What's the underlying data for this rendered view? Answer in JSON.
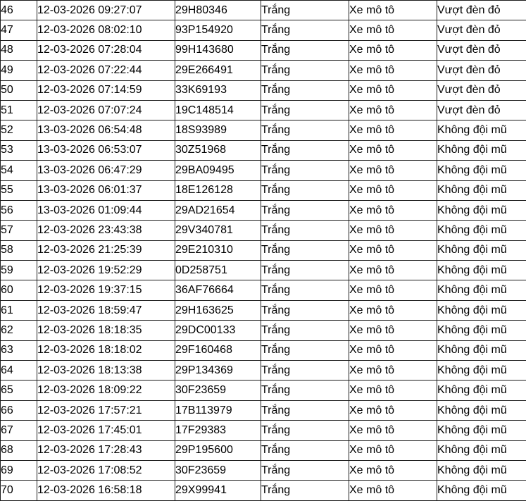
{
  "colors": {
    "background": "#ffffff",
    "border": "#1d1d1d",
    "text": "#000000"
  },
  "table": {
    "rows": [
      {
        "no": "46",
        "datetime": "12-03-2026 09:27:07",
        "plate": "29H80346",
        "color": "Trắng",
        "vehicle": "Xe mô tô",
        "violation": "Vượt đèn đỏ"
      },
      {
        "no": "47",
        "datetime": "12-03-2026 08:02:10",
        "plate": "93P154920",
        "color": "Trắng",
        "vehicle": "Xe mô tô",
        "violation": "Vượt đèn đỏ"
      },
      {
        "no": "48",
        "datetime": "12-03-2026 07:28:04",
        "plate": "99H143680",
        "color": "Trắng",
        "vehicle": "Xe mô tô",
        "violation": "Vượt đèn đỏ"
      },
      {
        "no": "49",
        "datetime": "12-03-2026 07:22:44",
        "plate": "29E266491",
        "color": "Trắng",
        "vehicle": "Xe mô tô",
        "violation": "Vượt đèn đỏ"
      },
      {
        "no": "50",
        "datetime": "12-03-2026 07:14:59",
        "plate": "33K69193",
        "color": "Trắng",
        "vehicle": "Xe mô tô",
        "violation": "Vượt đèn đỏ"
      },
      {
        "no": "51",
        "datetime": "12-03-2026 07:07:24",
        "plate": "19C148514",
        "color": "Trắng",
        "vehicle": "Xe mô tô",
        "violation": "Vượt đèn đỏ"
      },
      {
        "no": "52",
        "datetime": "13-03-2026 06:54:48",
        "plate": "18S93989",
        "color": "Trắng",
        "vehicle": "Xe mô tô",
        "violation": "Không đội mũ"
      },
      {
        "no": "53",
        "datetime": "13-03-2026 06:53:07",
        "plate": "30Z51968",
        "color": "Trắng",
        "vehicle": "Xe mô tô",
        "violation": "Không đội mũ"
      },
      {
        "no": "54",
        "datetime": "13-03-2026 06:47:29",
        "plate": "29BA09495",
        "color": "Trắng",
        "vehicle": "Xe mô tô",
        "violation": "Không đội mũ"
      },
      {
        "no": "55",
        "datetime": "13-03-2026 06:01:37",
        "plate": "18E126128",
        "color": "Trắng",
        "vehicle": "Xe mô tô",
        "violation": "Không đội mũ"
      },
      {
        "no": "56",
        "datetime": "13-03-2026 01:09:44",
        "plate": "29AD21654",
        "color": "Trắng",
        "vehicle": "Xe mô tô",
        "violation": "Không đội mũ"
      },
      {
        "no": "57",
        "datetime": "12-03-2026 23:43:38",
        "plate": "29V340781",
        "color": "Trắng",
        "vehicle": "Xe mô tô",
        "violation": "Không đội mũ"
      },
      {
        "no": "58",
        "datetime": "12-03-2026 21:25:39",
        "plate": "29E210310",
        "color": "Trắng",
        "vehicle": "Xe mô tô",
        "violation": "Không đội mũ"
      },
      {
        "no": "59",
        "datetime": "12-03-2026 19:52:29",
        "plate": "0D258751",
        "color": "Trắng",
        "vehicle": "Xe mô tô",
        "violation": "Không đội mũ"
      },
      {
        "no": "60",
        "datetime": "12-03-2026 19:37:15",
        "plate": "36AF76664",
        "color": "Trắng",
        "vehicle": "Xe mô tô",
        "violation": "Không đội mũ"
      },
      {
        "no": "61",
        "datetime": "12-03-2026 18:59:47",
        "plate": "29H163625",
        "color": "Trắng",
        "vehicle": "Xe mô tô",
        "violation": "Không đội mũ"
      },
      {
        "no": "62",
        "datetime": "12-03-2026 18:18:35",
        "plate": "29DC00133",
        "color": "Trắng",
        "vehicle": "Xe mô tô",
        "violation": "Không đội mũ"
      },
      {
        "no": "63",
        "datetime": "12-03-2026 18:18:02",
        "plate": "29F160468",
        "color": "Trắng",
        "vehicle": "Xe mô tô",
        "violation": "Không đội mũ"
      },
      {
        "no": "64",
        "datetime": "12-03-2026 18:13:38",
        "plate": "29P134369",
        "color": "Trắng",
        "vehicle": "Xe mô tô",
        "violation": "Không đội mũ"
      },
      {
        "no": "65",
        "datetime": "12-03-2026 18:09:22",
        "plate": "30F23659",
        "color": "Trắng",
        "vehicle": "Xe mô tô",
        "violation": "Không đội mũ"
      },
      {
        "no": "66",
        "datetime": "12-03-2026 17:57:21",
        "plate": "17B113979",
        "color": "Trắng",
        "vehicle": "Xe mô tô",
        "violation": "Không đội mũ"
      },
      {
        "no": "67",
        "datetime": "12-03-2026 17:45:01",
        "plate": "17F29383",
        "color": "Trắng",
        "vehicle": "Xe mô tô",
        "violation": "Không đội mũ"
      },
      {
        "no": "68",
        "datetime": "12-03-2026 17:28:43",
        "plate": "29P195600",
        "color": "Trắng",
        "vehicle": "Xe mô tô",
        "violation": "Không đội mũ"
      },
      {
        "no": "69",
        "datetime": "12-03-2026 17:08:52",
        "plate": "30F23659",
        "color": "Trắng",
        "vehicle": "Xe mô tô",
        "violation": "Không đội mũ"
      },
      {
        "no": "70",
        "datetime": "12-03-2026 16:58:18",
        "plate": "29X99941",
        "color": "Trắng",
        "vehicle": "Xe mô tô",
        "violation": "Không đội mũ"
      }
    ]
  }
}
